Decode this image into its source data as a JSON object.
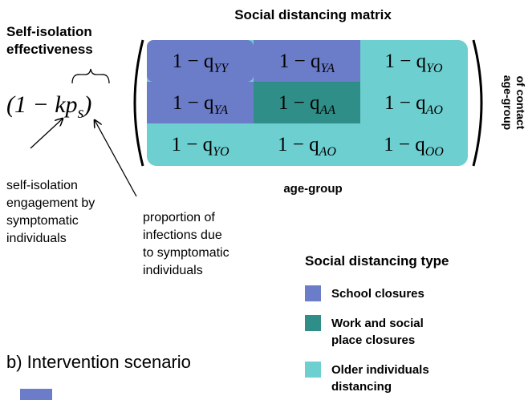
{
  "header": {
    "left_title": [
      "Self-isolation",
      "effectiveness"
    ],
    "matrix_title": "Social distancing matrix"
  },
  "formula": {
    "base": "(1 − kp",
    "sub": "s",
    "close": ")"
  },
  "matrix": {
    "rows": [
      [
        {
          "base": "1 − q",
          "sub": "YY"
        },
        {
          "base": "1 − q",
          "sub": "YA"
        },
        {
          "base": "1 − q",
          "sub": "YO"
        }
      ],
      [
        {
          "base": "1 − q",
          "sub": "YA"
        },
        {
          "base": "1 − q",
          "sub": "AA"
        },
        {
          "base": "1 − q",
          "sub": "AO"
        }
      ],
      [
        {
          "base": "1 − q",
          "sub": "YO"
        },
        {
          "base": "1 − q",
          "sub": "AO"
        },
        {
          "base": "1 − q",
          "sub": "OO"
        }
      ]
    ],
    "x_label": "age-group",
    "y_label": [
      "age-group",
      "of contact"
    ]
  },
  "annotations": {
    "k": [
      "self-isolation",
      "engagement by",
      "symptomatic",
      "individuals"
    ],
    "ps": [
      "proportion of",
      "infections due",
      "to symptomatic",
      "individuals"
    ]
  },
  "legend": {
    "title": "Social distancing type",
    "items": [
      {
        "label": [
          "School closures"
        ],
        "color": "#6b7cc9"
      },
      {
        "label": [
          "Work and social",
          "place closures"
        ],
        "color": "#2f8f88"
      },
      {
        "label": [
          "Older individuals",
          "distancing"
        ],
        "color": "#6ecfd0"
      }
    ]
  },
  "section_b": "b) Intervention scenario"
}
